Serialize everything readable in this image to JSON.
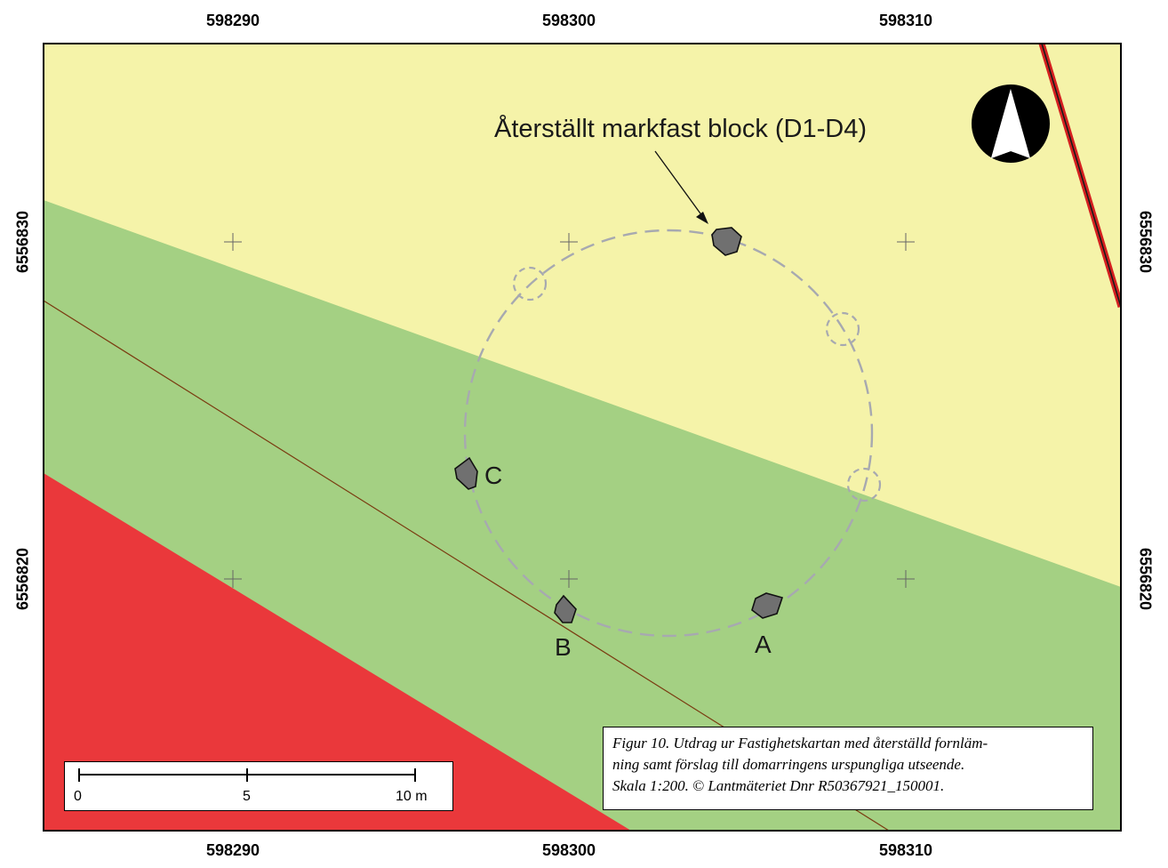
{
  "coords": {
    "top": [
      "598290",
      "598300",
      "598310"
    ],
    "bottom": [
      "598290",
      "598300",
      "598310"
    ],
    "left": [
      "6556830",
      "6556820"
    ],
    "right": [
      "6556830",
      "6556820"
    ]
  },
  "zones": {
    "yellow": "#f5f3a9",
    "green": "#a4d083",
    "red": "#ea383b"
  },
  "annotation": {
    "text": "Återställt markfast block (D1-D4)"
  },
  "stones": {
    "a": "A",
    "b": "B",
    "c": "C"
  },
  "north_arrow": {
    "icon": "north-arrow-icon"
  },
  "scale_bar": {
    "ticks": [
      "0",
      "5",
      "10 m"
    ]
  },
  "caption": {
    "line1": "Figur  10. Utdrag ur Fastighetskartan med återställd fornläm-",
    "line2": "ning samt förslag till domarringens urspungliga utseende.",
    "line3": "Skala 1:200. © Lantmäteriet Dnr R50367921_150001."
  }
}
